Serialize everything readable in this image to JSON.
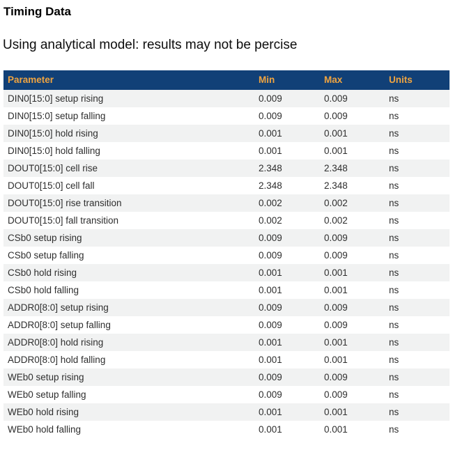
{
  "page": {
    "title": "Timing Data",
    "subtitle": "Using analytical model: results may not be percise"
  },
  "colors": {
    "header_bg": "#114077",
    "header_text": "#f0a440",
    "row_stripe": "#f1f2f2",
    "body_text": "#2e2e2e"
  },
  "table": {
    "columns": [
      "Parameter",
      "Min",
      "Max",
      "Units"
    ],
    "rows": [
      {
        "parameter": "DIN0[15:0] setup rising",
        "min": "0.009",
        "max": "0.009",
        "units": "ns"
      },
      {
        "parameter": "DIN0[15:0] setup falling",
        "min": "0.009",
        "max": "0.009",
        "units": "ns"
      },
      {
        "parameter": "DIN0[15:0] hold rising",
        "min": "0.001",
        "max": "0.001",
        "units": "ns"
      },
      {
        "parameter": "DIN0[15:0] hold falling",
        "min": "0.001",
        "max": "0.001",
        "units": "ns"
      },
      {
        "parameter": "DOUT0[15:0] cell rise",
        "min": "2.348",
        "max": "2.348",
        "units": "ns"
      },
      {
        "parameter": "DOUT0[15:0] cell fall",
        "min": "2.348",
        "max": "2.348",
        "units": "ns"
      },
      {
        "parameter": "DOUT0[15:0] rise transition",
        "min": "0.002",
        "max": "0.002",
        "units": "ns"
      },
      {
        "parameter": "DOUT0[15:0] fall transition",
        "min": "0.002",
        "max": "0.002",
        "units": "ns"
      },
      {
        "parameter": "CSb0 setup rising",
        "min": "0.009",
        "max": "0.009",
        "units": "ns"
      },
      {
        "parameter": "CSb0 setup falling",
        "min": "0.009",
        "max": "0.009",
        "units": "ns"
      },
      {
        "parameter": "CSb0 hold rising",
        "min": "0.001",
        "max": "0.001",
        "units": "ns"
      },
      {
        "parameter": "CSb0 hold falling",
        "min": "0.001",
        "max": "0.001",
        "units": "ns"
      },
      {
        "parameter": "ADDR0[8:0] setup rising",
        "min": "0.009",
        "max": "0.009",
        "units": "ns"
      },
      {
        "parameter": "ADDR0[8:0] setup falling",
        "min": "0.009",
        "max": "0.009",
        "units": "ns"
      },
      {
        "parameter": "ADDR0[8:0] hold rising",
        "min": "0.001",
        "max": "0.001",
        "units": "ns"
      },
      {
        "parameter": "ADDR0[8:0] hold falling",
        "min": "0.001",
        "max": "0.001",
        "units": "ns"
      },
      {
        "parameter": "WEb0 setup rising",
        "min": "0.009",
        "max": "0.009",
        "units": "ns"
      },
      {
        "parameter": "WEb0 setup falling",
        "min": "0.009",
        "max": "0.009",
        "units": "ns"
      },
      {
        "parameter": "WEb0 hold rising",
        "min": "0.001",
        "max": "0.001",
        "units": "ns"
      },
      {
        "parameter": "WEb0 hold falling",
        "min": "0.001",
        "max": "0.001",
        "units": "ns"
      }
    ]
  }
}
